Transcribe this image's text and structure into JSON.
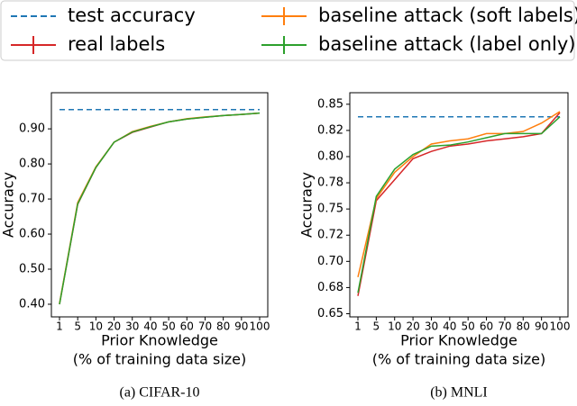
{
  "chart_data": [
    {
      "type": "line",
      "caption": "(a) CIFAR-10",
      "ylabel": "Accuracy",
      "xlabel": [
        "Prior Knowledge",
        "(% of training data size)"
      ],
      "categories": [
        "1",
        "5",
        "10",
        "20",
        "30",
        "40",
        "50",
        "60",
        "70",
        "80",
        "90",
        "100"
      ],
      "ylim": [
        0.364,
        1.003
      ],
      "yticks": [
        {
          "value": 0.4,
          "label": "0.40"
        },
        {
          "value": 0.5,
          "label": "0.50"
        },
        {
          "value": 0.6,
          "label": "0.60"
        },
        {
          "value": 0.7,
          "label": "0.70"
        },
        {
          "value": 0.8,
          "label": "0.80"
        },
        {
          "value": 0.9,
          "label": "0.90"
        }
      ],
      "reference": {
        "name": "test accuracy",
        "value": 0.955,
        "color": "#1f77b4"
      },
      "series": [
        {
          "name": "real labels",
          "color": "#d62728",
          "values": [
            0.4,
            0.685,
            0.79,
            0.862,
            0.89,
            0.905,
            0.92,
            0.928,
            0.933,
            0.938,
            0.941,
            0.945
          ]
        },
        {
          "name": "baseline attack (soft labels)",
          "color": "#ff7f0e",
          "values": [
            0.402,
            0.69,
            0.792,
            0.862,
            0.892,
            0.907,
            0.92,
            0.929,
            0.934,
            0.938,
            0.941,
            0.945
          ]
        },
        {
          "name": "baseline attack (label only)",
          "color": "#2ca02c",
          "values": [
            0.4,
            0.686,
            0.79,
            0.862,
            0.891,
            0.906,
            0.92,
            0.928,
            0.933,
            0.938,
            0.941,
            0.945
          ]
        }
      ]
    },
    {
      "type": "line",
      "caption": "(b) MNLI",
      "ylabel": "Accuracy",
      "xlabel": [
        "Prior Knowledge",
        "(% of training data size)"
      ],
      "categories": [
        "1",
        "5",
        "10",
        "20",
        "30",
        "40",
        "50",
        "60",
        "70",
        "80",
        "90",
        "100"
      ],
      "ylim": [
        0.647,
        0.861
      ],
      "yticks": [
        {
          "value": 0.65,
          "label": "0.65"
        },
        {
          "value": 0.675,
          "label": "0.68"
        },
        {
          "value": 0.7,
          "label": "0.70"
        },
        {
          "value": 0.725,
          "label": "0.72"
        },
        {
          "value": 0.75,
          "label": "0.75"
        },
        {
          "value": 0.775,
          "label": "0.78"
        },
        {
          "value": 0.8,
          "label": "0.80"
        },
        {
          "value": 0.825,
          "label": "0.82"
        },
        {
          "value": 0.85,
          "label": "0.85"
        }
      ],
      "reference": {
        "value": 0.838,
        "color": "#1f77b4"
      },
      "series": [
        {
          "color": "#d62728",
          "values": [
            0.667,
            0.758,
            0.778,
            0.798,
            0.805,
            0.81,
            0.812,
            0.815,
            0.817,
            0.819,
            0.822,
            0.842
          ]
        },
        {
          "color": "#ff7f0e",
          "values": [
            0.685,
            0.76,
            0.785,
            0.8,
            0.812,
            0.815,
            0.817,
            0.822,
            0.822,
            0.824,
            0.832,
            0.843
          ]
        },
        {
          "color": "#2ca02c",
          "values": [
            0.67,
            0.762,
            0.788,
            0.802,
            0.81,
            0.811,
            0.814,
            0.818,
            0.822,
            0.822,
            0.822,
            0.838
          ]
        }
      ]
    }
  ]
}
